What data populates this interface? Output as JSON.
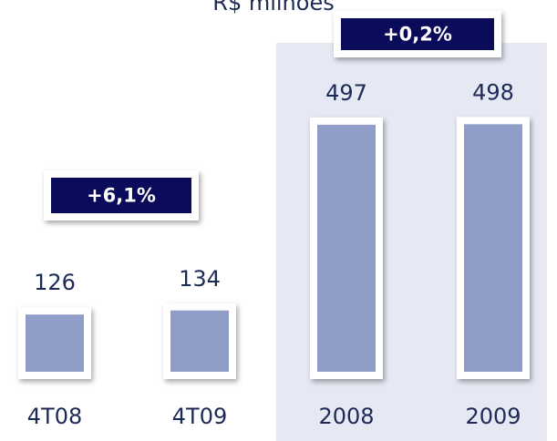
{
  "chart_data": {
    "type": "bar",
    "title": "R$ milhões",
    "categories": [
      "4T08",
      "4T09",
      "2008",
      "2009"
    ],
    "values": [
      126,
      134,
      497,
      498
    ],
    "color": "#8f9dc8",
    "ylim": [
      0,
      520
    ],
    "annotations": [
      "+6,1%",
      "+0,2%"
    ]
  }
}
